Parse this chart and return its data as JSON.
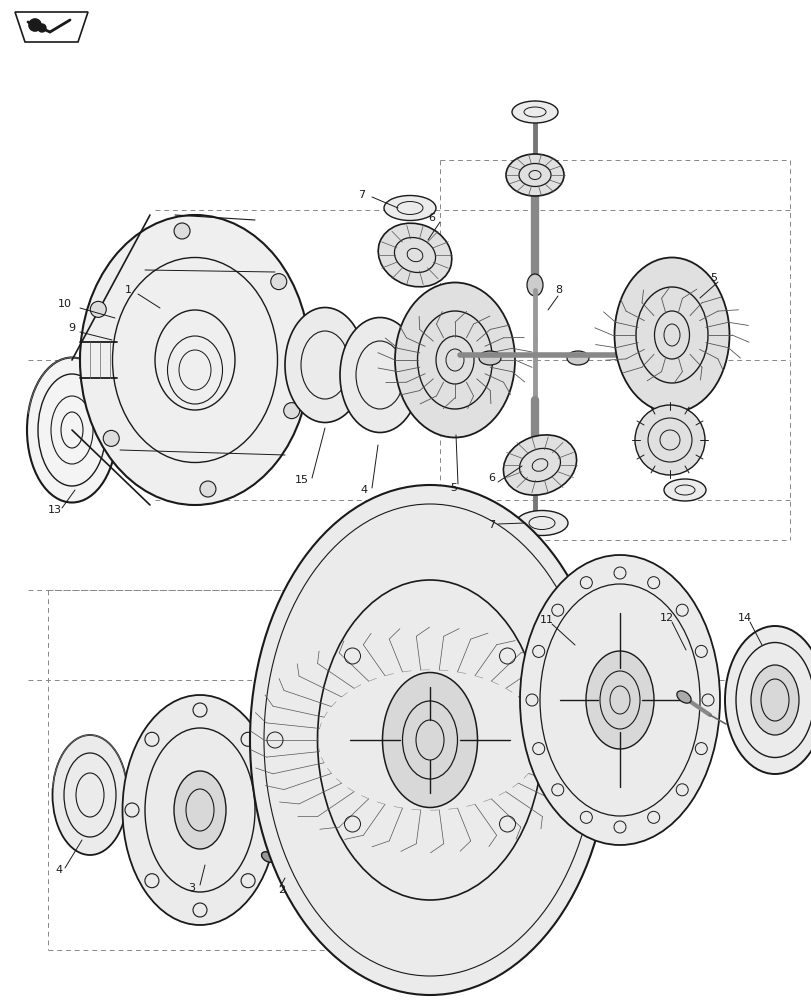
{
  "bg_color": "#ffffff",
  "lc": "#1a1a1a",
  "dc": "#888888",
  "figsize": [
    8.12,
    10.0
  ],
  "dpi": 100
}
